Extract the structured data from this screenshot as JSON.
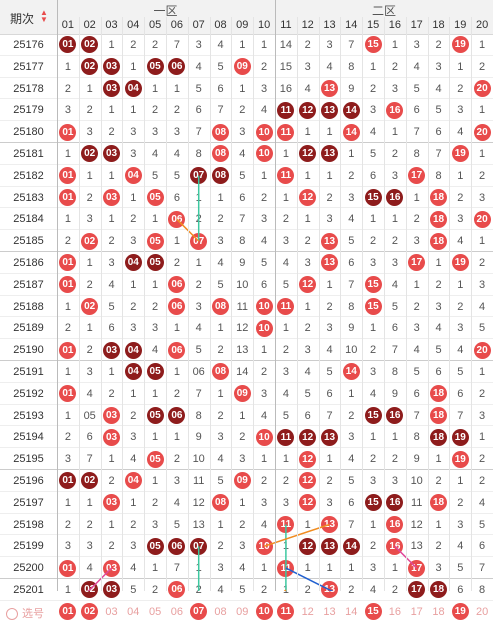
{
  "header": {
    "issue_label": "期次",
    "zone1_label": "一区",
    "zone2_label": "二区",
    "select_label": "选号"
  },
  "columns": [
    "01",
    "02",
    "03",
    "04",
    "05",
    "06",
    "07",
    "08",
    "09",
    "10",
    "11",
    "12",
    "13",
    "14",
    "15",
    "16",
    "17",
    "18",
    "19",
    "20"
  ],
  "colors": {
    "red": "#e84b4b",
    "darkred": "#8e1c1c",
    "pink_row": "#fdeeee",
    "gray_row": "#f4f4f4"
  },
  "rows": [
    {
      "issue": "25176",
      "cells": [
        "01",
        "02",
        "1",
        "2",
        "2",
        "7",
        "3",
        "4",
        "1",
        "1",
        "14",
        "2",
        "3",
        "7",
        "15",
        "1",
        "3",
        "2",
        "19",
        "1"
      ]
    },
    {
      "issue": "25177",
      "cells": [
        "1",
        "02",
        "03",
        "1",
        "05",
        "06",
        "4",
        "5",
        "09",
        "2",
        "15",
        "3",
        "4",
        "8",
        "1",
        "2",
        "4",
        "3",
        "1",
        "2"
      ]
    },
    {
      "issue": "25178",
      "cells": [
        "2",
        "1",
        "03",
        "04",
        "1",
        "1",
        "5",
        "6",
        "1",
        "3",
        "16",
        "4",
        "13",
        "9",
        "2",
        "3",
        "5",
        "4",
        "2",
        "20"
      ]
    },
    {
      "issue": "25179",
      "cells": [
        "3",
        "2",
        "1",
        "1",
        "2",
        "2",
        "6",
        "7",
        "2",
        "4",
        "11",
        "12",
        "13",
        "14",
        "3",
        "16",
        "6",
        "5",
        "3",
        "1"
      ]
    },
    {
      "issue": "25180",
      "cells": [
        "01",
        "3",
        "2",
        "3",
        "3",
        "3",
        "7",
        "08",
        "3",
        "10",
        "11",
        "1",
        "1",
        "14",
        "4",
        "1",
        "7",
        "6",
        "4",
        "20"
      ]
    },
    {
      "issue": "25181",
      "cells": [
        "1",
        "02",
        "03",
        "3",
        "4",
        "4",
        "8",
        "08",
        "4",
        "10",
        "1",
        "12",
        "13",
        "1",
        "5",
        "2",
        "8",
        "7",
        "19",
        "1"
      ]
    },
    {
      "issue": "25182",
      "cells": [
        "01",
        "1",
        "1",
        "04",
        "5",
        "5",
        "07",
        "08",
        "5",
        "1",
        "11",
        "1",
        "1",
        "2",
        "6",
        "3",
        "17",
        "8",
        "1",
        "2"
      ]
    },
    {
      "issue": "25183",
      "cells": [
        "01",
        "2",
        "03",
        "1",
        "05",
        "6",
        "1",
        "1",
        "6",
        "2",
        "1",
        "12",
        "2",
        "3",
        "15",
        "16",
        "1",
        "18",
        "2",
        "3"
      ]
    },
    {
      "issue": "25184",
      "cells": [
        "1",
        "3",
        "1",
        "2",
        "1",
        "06",
        "2",
        "2",
        "7",
        "3",
        "2",
        "1",
        "3",
        "4",
        "1",
        "1",
        "2",
        "18",
        "3",
        "20"
      ]
    },
    {
      "issue": "25185",
      "cells": [
        "2",
        "02",
        "2",
        "3",
        "05",
        "1",
        "07",
        "3",
        "8",
        "4",
        "3",
        "2",
        "13",
        "5",
        "2",
        "2",
        "3",
        "18",
        "4",
        "1"
      ]
    },
    {
      "issue": "25186",
      "cells": [
        "01",
        "1",
        "3",
        "04",
        "05",
        "2",
        "1",
        "4",
        "9",
        "5",
        "4",
        "3",
        "13",
        "6",
        "3",
        "3",
        "17",
        "1",
        "19",
        "2"
      ]
    },
    {
      "issue": "25187",
      "cells": [
        "01",
        "2",
        "4",
        "1",
        "1",
        "06",
        "2",
        "5",
        "10",
        "6",
        "5",
        "12",
        "1",
        "7",
        "15",
        "4",
        "1",
        "2",
        "1",
        "3"
      ]
    },
    {
      "issue": "25188",
      "cells": [
        "1",
        "02",
        "5",
        "2",
        "2",
        "06",
        "3",
        "08",
        "11",
        "10",
        "11",
        "1",
        "2",
        "8",
        "15",
        "5",
        "2",
        "3",
        "2",
        "4"
      ]
    },
    {
      "issue": "25189",
      "cells": [
        "2",
        "1",
        "6",
        "3",
        "3",
        "1",
        "4",
        "1",
        "12",
        "10",
        "1",
        "2",
        "3",
        "9",
        "1",
        "6",
        "3",
        "4",
        "3",
        "5"
      ]
    },
    {
      "issue": "25190",
      "cells": [
        "01",
        "2",
        "03",
        "04",
        "4",
        "06",
        "5",
        "2",
        "13",
        "1",
        "2",
        "3",
        "4",
        "10",
        "2",
        "7",
        "4",
        "5",
        "4",
        "20"
      ]
    },
    {
      "issue": "25191",
      "cells": [
        "1",
        "3",
        "1",
        "04",
        "05",
        "1",
        "06",
        "08",
        "14",
        "2",
        "3",
        "4",
        "5",
        "14",
        "3",
        "8",
        "5",
        "6",
        "5",
        "1"
      ]
    },
    {
      "issue": "25192",
      "cells": [
        "01",
        "4",
        "2",
        "1",
        "1",
        "2",
        "7",
        "1",
        "09",
        "3",
        "4",
        "5",
        "6",
        "1",
        "4",
        "9",
        "6",
        "18",
        "6",
        "2"
      ]
    },
    {
      "issue": "25193",
      "cells": [
        "1",
        "05",
        "03",
        "2",
        "05",
        "06",
        "8",
        "2",
        "1",
        "4",
        "5",
        "6",
        "7",
        "2",
        "15",
        "16",
        "7",
        "18",
        "7",
        "3"
      ]
    },
    {
      "issue": "25194",
      "cells": [
        "2",
        "6",
        "03",
        "3",
        "1",
        "1",
        "9",
        "3",
        "2",
        "10",
        "11",
        "12",
        "13",
        "3",
        "1",
        "1",
        "8",
        "18",
        "19",
        "1"
      ]
    },
    {
      "issue": "25195",
      "cells": [
        "3",
        "7",
        "1",
        "4",
        "05",
        "2",
        "10",
        "4",
        "3",
        "1",
        "1",
        "12",
        "1",
        "4",
        "2",
        "2",
        "9",
        "1",
        "19",
        "2"
      ]
    },
    {
      "issue": "25196",
      "cells": [
        "01",
        "02",
        "2",
        "04",
        "1",
        "3",
        "11",
        "5",
        "09",
        "2",
        "2",
        "12",
        "2",
        "5",
        "3",
        "3",
        "10",
        "2",
        "1",
        "2"
      ]
    },
    {
      "issue": "25197",
      "cells": [
        "1",
        "1",
        "03",
        "1",
        "2",
        "4",
        "12",
        "08",
        "1",
        "3",
        "3",
        "12",
        "3",
        "6",
        "15",
        "16",
        "11",
        "18",
        "2",
        "4"
      ]
    },
    {
      "issue": "25198",
      "cells": [
        "2",
        "2",
        "1",
        "2",
        "3",
        "5",
        "13",
        "1",
        "2",
        "4",
        "11",
        "1",
        "13",
        "7",
        "1",
        "16",
        "12",
        "1",
        "3",
        "5"
      ]
    },
    {
      "issue": "25199",
      "cells": [
        "3",
        "3",
        "2",
        "3",
        "05",
        "06",
        "07",
        "2",
        "3",
        "10",
        "1",
        "12",
        "13",
        "14",
        "2",
        "16",
        "13",
        "2",
        "4",
        "6"
      ]
    },
    {
      "issue": "25200",
      "cells": [
        "01",
        "4",
        "03",
        "4",
        "1",
        "7",
        "1",
        "3",
        "4",
        "1",
        "11",
        "1",
        "1",
        "1",
        "3",
        "1",
        "17",
        "3",
        "5",
        "7"
      ]
    },
    {
      "issue": "25201",
      "cells": [
        "1",
        "02",
        "03",
        "5",
        "2",
        "06",
        "2",
        "4",
        "5",
        "2",
        "1",
        "2",
        "13",
        "2",
        "4",
        "2",
        "17",
        "18",
        "6",
        "8"
      ]
    }
  ],
  "select_row": [
    "01",
    "02",
    "03",
    "04",
    "05",
    "06",
    "07",
    "08",
    "09",
    "10",
    "11",
    "12",
    "13",
    "14",
    "15",
    "16",
    "17",
    "18",
    "19",
    "20"
  ]
}
